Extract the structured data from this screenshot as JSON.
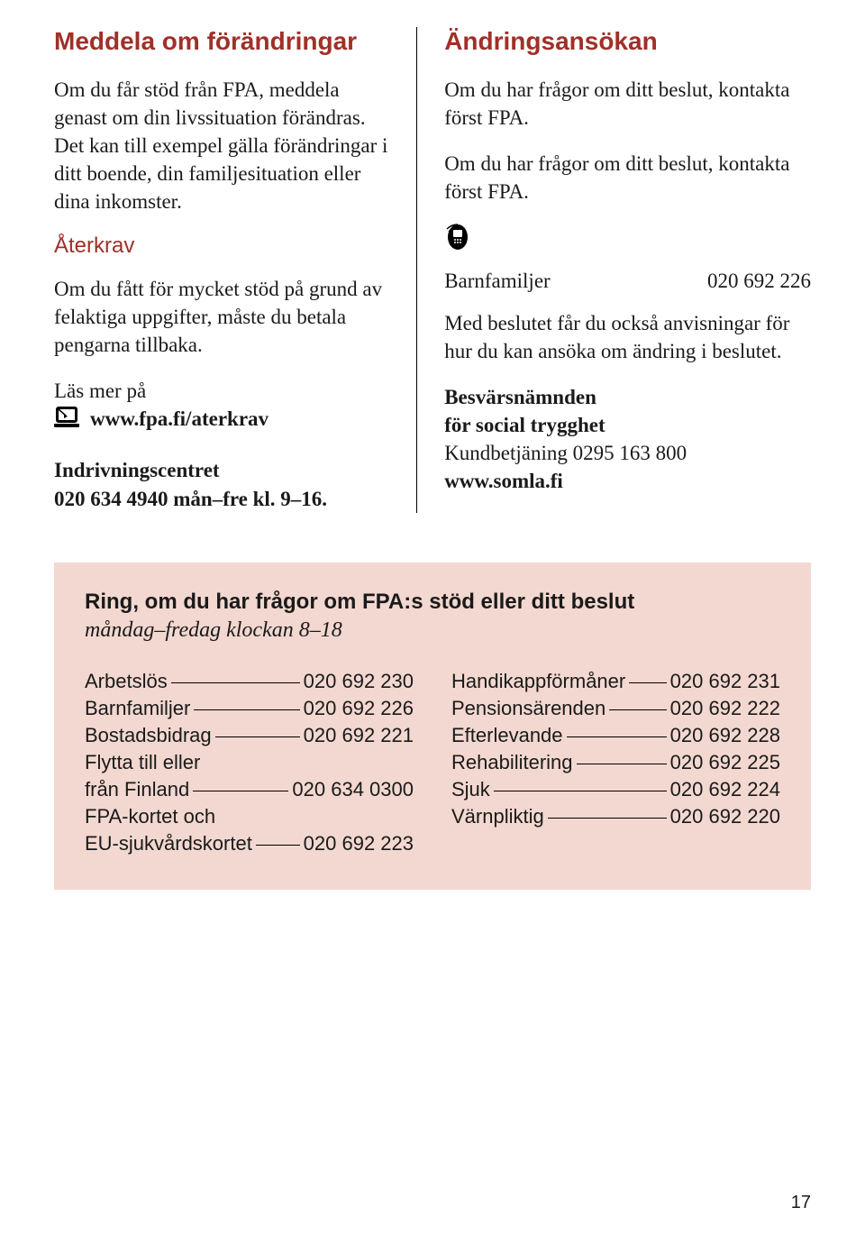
{
  "colors": {
    "red": "#a03028",
    "box_bg": "#f2d8d0",
    "text": "#1a1a1a"
  },
  "left": {
    "h1": "Meddela om förändringar",
    "p1": "Om du får stöd från FPA, meddela genast om din livssituation förändras.\nDet kan till exempel gälla förändringar i ditt boende, din familjesituation eller dina inkomster.",
    "h2": "Återkrav",
    "p2": "Om du fått för mycket stöd på grund av felaktiga uppgifter, måste du betala pengarna tillbaka.",
    "read_more": "Läs mer på",
    "link": "www.fpa.fi/aterkrav",
    "center_label": "Indrivningscentret",
    "center_phone": "020 634 4940 mån–fre kl. 9–16."
  },
  "right": {
    "h1": "Ändringsansökan",
    "p1": "Om du har frågor om ditt beslut, kontakta först FPA.",
    "p2": "Om du har frågor om ditt beslut, kontakta först FPA.",
    "phone_label": "Barnfamiljer",
    "phone_num": "020 692 226",
    "p3": "Med beslutet får du också anvisningar för hur du kan ansöka om ändring i beslutet.",
    "b1": "Besvärsnämnden",
    "b2": "för social trygghet",
    "b3": "Kundbetjäning 0295 163 800",
    "b4": "www.somla.fi"
  },
  "box": {
    "title": "Ring, om du har frågor om FPA:s stöd eller ditt beslut",
    "sub": "måndag–fredag klockan 8–18",
    "left_items": [
      {
        "label": "Arbetslös",
        "num": "020 692 230"
      },
      {
        "label": "Barnfamiljer",
        "num": "020 692 226"
      },
      {
        "label": "Bostadsbidrag",
        "num": "020 692 221"
      },
      {
        "label": "Flytta till eller",
        "num": ""
      },
      {
        "label": "från Finland",
        "num": "020 634 0300"
      },
      {
        "label": "FPA-kortet och",
        "num": ""
      },
      {
        "label": "EU-sjukvårdskortet",
        "num": "020 692 223"
      }
    ],
    "right_items": [
      {
        "label": "Handikappförmåner",
        "num": "020 692 231"
      },
      {
        "label": "Pensionsärenden",
        "num": "020 692 222"
      },
      {
        "label": "Efterlevande",
        "num": "020 692 228"
      },
      {
        "label": "Rehabilitering",
        "num": "020 692 225"
      },
      {
        "label": "Sjuk",
        "num": "020 692 224"
      },
      {
        "label": "Värnpliktig",
        "num": "020 692 220"
      }
    ]
  },
  "page": "17"
}
